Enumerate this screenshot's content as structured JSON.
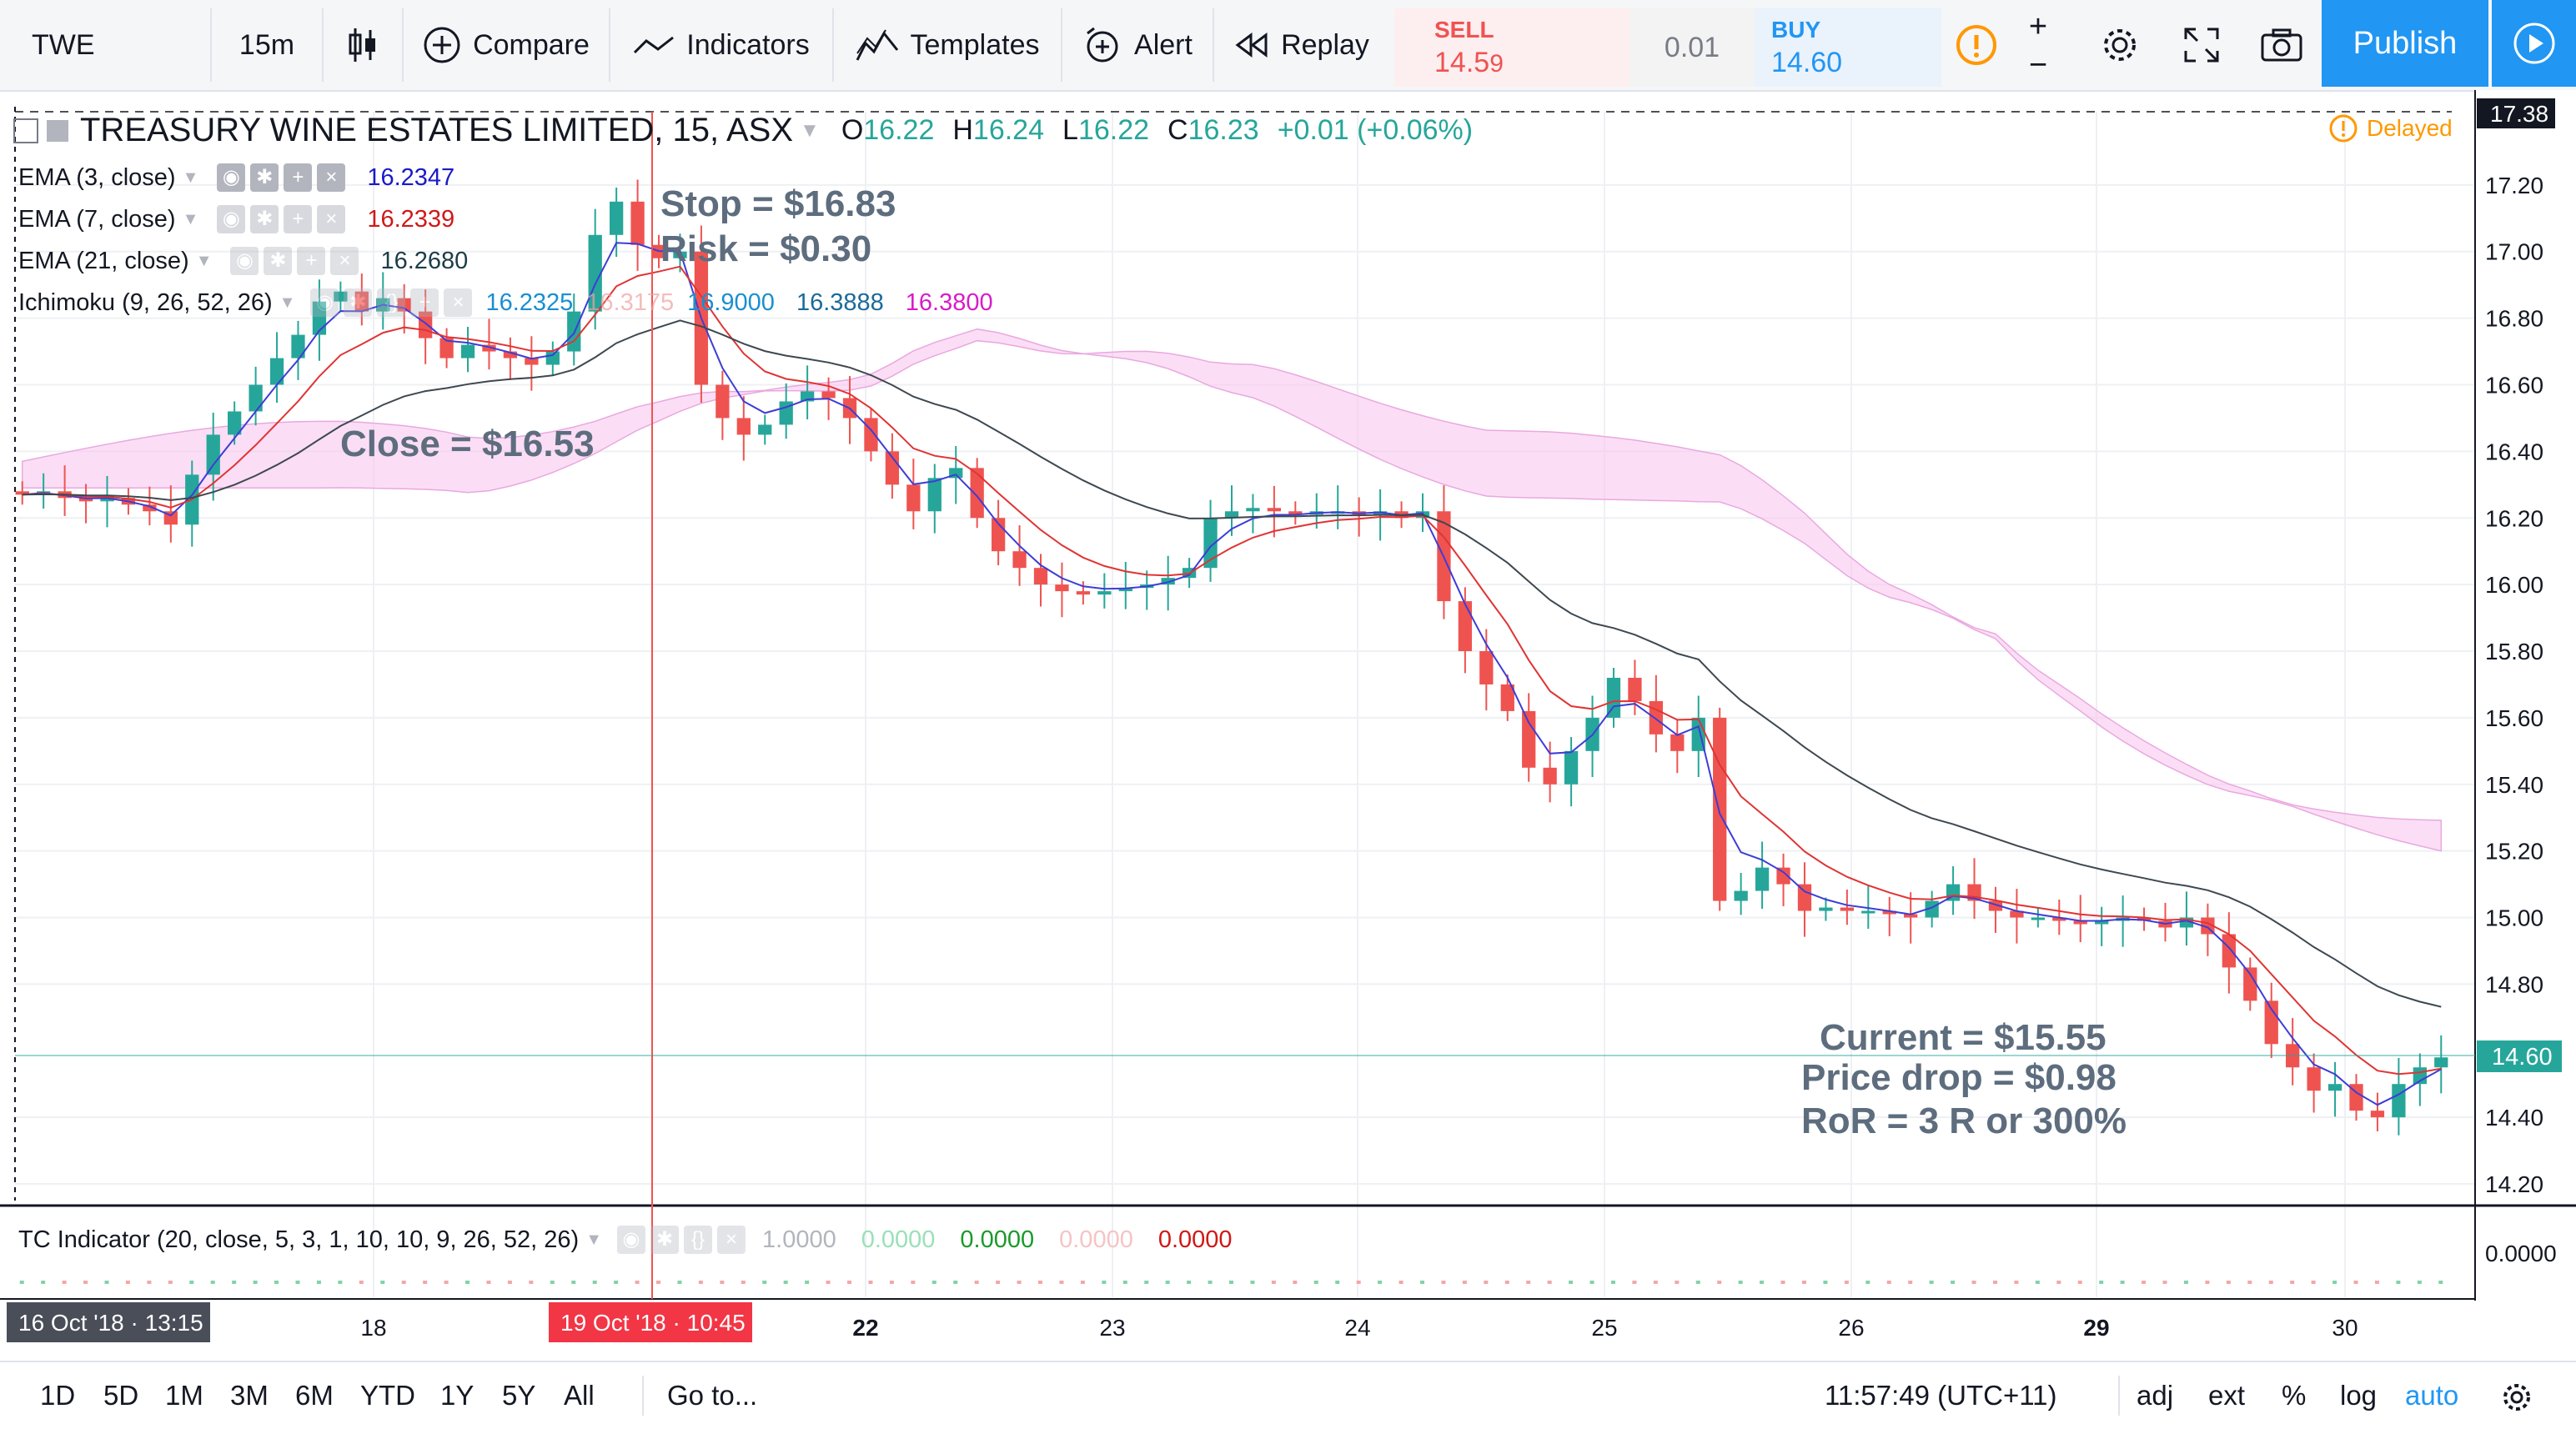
{
  "toolbar": {
    "symbol": "TWE",
    "interval": "15m",
    "compare": "Compare",
    "indicators": "Indicators",
    "templates": "Templates",
    "alert": "Alert",
    "replay": "Replay",
    "sell_label": "SELL",
    "sell_price_main": "14.5",
    "sell_price_small": "9",
    "spread": "0.01",
    "buy_label": "BUY",
    "buy_price_main": "14.",
    "buy_price_small": "60",
    "publish": "Publish"
  },
  "header": {
    "title": "TREASURY WINE ESTATES LIMITED, 15, ASX",
    "o_label": "O",
    "o_value": "16.22",
    "h_label": "H",
    "h_value": "16.24",
    "l_label": "L",
    "l_value": "16.22",
    "c_label": "C",
    "c_value": "16.23",
    "change": "+0.01 (+0.06%)",
    "delayed": "Delayed"
  },
  "indicators": [
    {
      "name": "EMA (3, close)",
      "value": "16.2347",
      "color": "#1a1ac8"
    },
    {
      "name": "EMA (7, close)",
      "value": "16.2339",
      "color": "#d01818"
    },
    {
      "name": "EMA (21, close)",
      "value": "16.2680",
      "color": "#1c3c48"
    },
    {
      "name": "Ichimoku (9, 26, 52, 26)",
      "values": [
        "16.2325",
        "16.3175",
        "16.9000",
        "16.3888",
        "16.3800"
      ]
    }
  ],
  "annotations": {
    "stop": "Stop = $16.83",
    "risk": "Risk = $0.30",
    "close": "Close = $16.53",
    "current": "Current = $15.55",
    "price_drop": "Price drop = $0.98",
    "ror": "RoR = 3 R  or 300%"
  },
  "price_axis": {
    "ticks": [
      "17.20",
      "17.00",
      "16.80",
      "16.60",
      "16.40",
      "16.20",
      "16.00",
      "15.80",
      "15.60",
      "15.40",
      "15.20",
      "15.00",
      "14.80",
      "14.40",
      "14.20"
    ],
    "top_marker": "17.38",
    "current_marker": "14.60",
    "osc_tick": "0.0000"
  },
  "time_axis": {
    "start_label": "16 Oct '18 · 13:15",
    "crosshair_label": "19 Oct '18 · 10:45",
    "ticks": [
      "18",
      "22",
      "23",
      "24",
      "25",
      "26",
      "29",
      "30"
    ]
  },
  "oscillator": {
    "name": "TC Indicator (20, close, 5, 3, 1, 10, 10, 9, 26, 52, 26)",
    "values": [
      "1.0000",
      "0.0000",
      "0.0000",
      "0.0000",
      "0.0000"
    ]
  },
  "bottom": {
    "ranges": [
      "1D",
      "5D",
      "1M",
      "3M",
      "6M",
      "YTD",
      "1Y",
      "5Y",
      "All"
    ],
    "goto": "Go to...",
    "clock": "11:57:49 (UTC+11)",
    "adj": "adj",
    "ext": "ext",
    "pct": "%",
    "log": "log",
    "auto": "auto"
  },
  "colors": {
    "up": "#26a69a",
    "down": "#ef5350",
    "cloud_bear": "#f8c8ee",
    "cloud_bull": "#c8dcf2",
    "ema3": "#3d3dd6",
    "ema7": "#e03434",
    "ema21": "#3d4850",
    "publish": "#2196f3"
  },
  "chart_data": {
    "type": "candlestick",
    "ylim": [
      14.15,
      17.42
    ],
    "x_dates": [
      "16 Oct",
      "18",
      "19 Oct",
      "22",
      "23",
      "24",
      "25",
      "26",
      "29",
      "30"
    ],
    "close_path_note": "",
    "closes": [
      16.27,
      16.28,
      16.26,
      16.25,
      16.26,
      16.24,
      16.22,
      16.18,
      16.33,
      16.45,
      16.52,
      16.6,
      16.68,
      16.75,
      16.85,
      16.88,
      16.82,
      16.86,
      16.82,
      16.74,
      16.68,
      16.72,
      16.7,
      16.68,
      16.66,
      16.7,
      16.82,
      17.05,
      17.15,
      17.02,
      16.98,
      17.0,
      16.6,
      16.5,
      16.45,
      16.48,
      16.55,
      16.58,
      16.56,
      16.5,
      16.4,
      16.3,
      16.22,
      16.32,
      16.35,
      16.2,
      16.1,
      16.05,
      16.0,
      15.98,
      15.97,
      15.98,
      15.99,
      16.0,
      16.02,
      16.05,
      16.2,
      16.22,
      16.23,
      16.22,
      16.21,
      16.22,
      16.22,
      16.21,
      16.22,
      16.2,
      16.22,
      15.95,
      15.8,
      15.7,
      15.62,
      15.45,
      15.4,
      15.5,
      15.6,
      15.72,
      15.65,
      15.55,
      15.5,
      15.6,
      15.05,
      15.08,
      15.15,
      15.1,
      15.02,
      15.03,
      15.02,
      15.02,
      15.01,
      15.0,
      15.05,
      15.1,
      15.05,
      15.02,
      15.0,
      15.0,
      14.99,
      14.98,
      14.99,
      15.0,
      14.99,
      14.97,
      15.0,
      14.95,
      14.85,
      14.75,
      14.62,
      14.55,
      14.48,
      14.5,
      14.42,
      14.4,
      14.5,
      14.55,
      14.58
    ]
  }
}
